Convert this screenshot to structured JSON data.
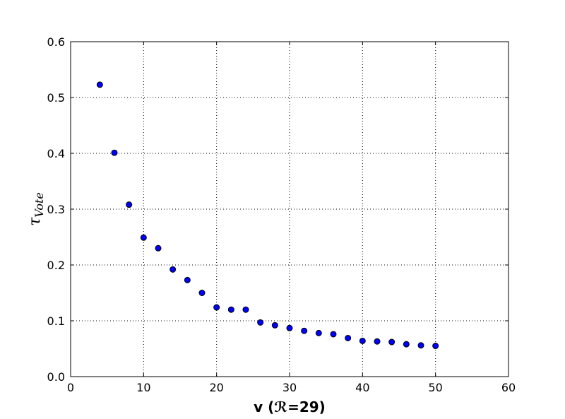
{
  "chart_data": {
    "type": "scatter",
    "title": "",
    "xlabel": "v (ℛ=29)",
    "ylabel": {
      "main": "τ",
      "sub": "Vote"
    },
    "xlim": [
      0,
      60
    ],
    "ylim": [
      0.0,
      0.6
    ],
    "xticks": [
      0,
      10,
      20,
      30,
      40,
      50,
      60
    ],
    "yticks": [
      0.0,
      0.1,
      0.2,
      0.3,
      0.4,
      0.5,
      0.6
    ],
    "xtick_labels": [
      "0",
      "10",
      "20",
      "30",
      "40",
      "50",
      "60"
    ],
    "ytick_labels": [
      "0.0",
      "0.1",
      "0.2",
      "0.3",
      "0.4",
      "0.5",
      "0.6"
    ],
    "grid": true,
    "marker_color": "#0000ff",
    "marker_edge_color": "#000000",
    "series": [
      {
        "x": [
          4,
          6,
          8,
          10,
          12,
          14,
          16,
          18,
          20,
          22,
          24,
          26,
          28,
          30,
          32,
          34,
          36,
          38,
          40,
          42,
          44,
          46,
          48,
          50
        ],
        "y": [
          0.523,
          0.401,
          0.308,
          0.249,
          0.23,
          0.192,
          0.173,
          0.15,
          0.124,
          0.12,
          0.12,
          0.097,
          0.092,
          0.087,
          0.082,
          0.078,
          0.076,
          0.069,
          0.064,
          0.063,
          0.062,
          0.058,
          0.056,
          0.055
        ]
      }
    ]
  }
}
